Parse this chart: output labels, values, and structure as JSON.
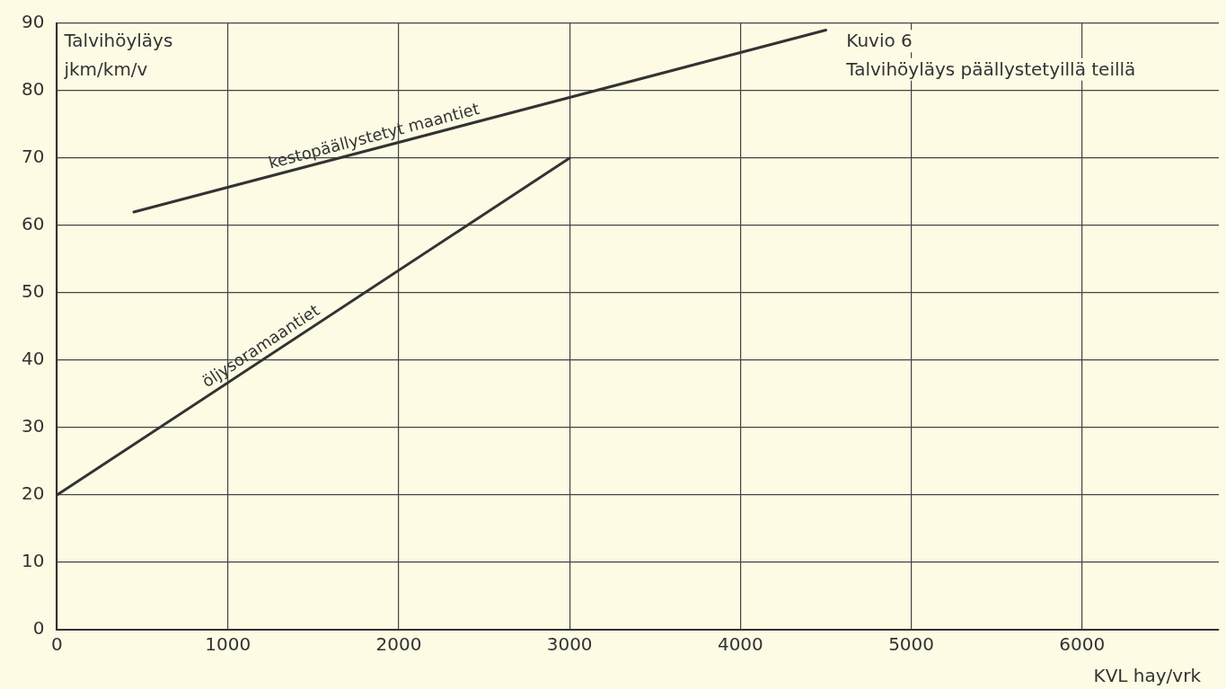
{
  "chart_data": {
    "type": "line",
    "title": "Kuvio 6",
    "subtitle": "Talvihöyläys päällystetyillä teillä",
    "xlabel": "KVL hay/vrk",
    "ylabel": "Talvihöyläys jkm/km/v",
    "series": [
      {
        "name": "kestopäällystetyt maantiet",
        "color": "#333333",
        "x": [
          450,
          4500
        ],
        "values": [
          62,
          89
        ]
      },
      {
        "name": "öljysoramaantiet",
        "color": "#333333",
        "x": [
          0,
          3000
        ],
        "values": [
          20,
          70
        ]
      }
    ],
    "xlim": [
      0,
      6800
    ],
    "xticks": [
      0,
      1000,
      2000,
      3000,
      4000,
      5000,
      6000
    ],
    "ylim": [
      0,
      90
    ],
    "yticks": [
      0,
      10,
      20,
      30,
      40,
      50,
      60,
      70,
      80,
      90
    ],
    "grid": true,
    "legend": false,
    "marker": "none",
    "line_style": "solid"
  }
}
